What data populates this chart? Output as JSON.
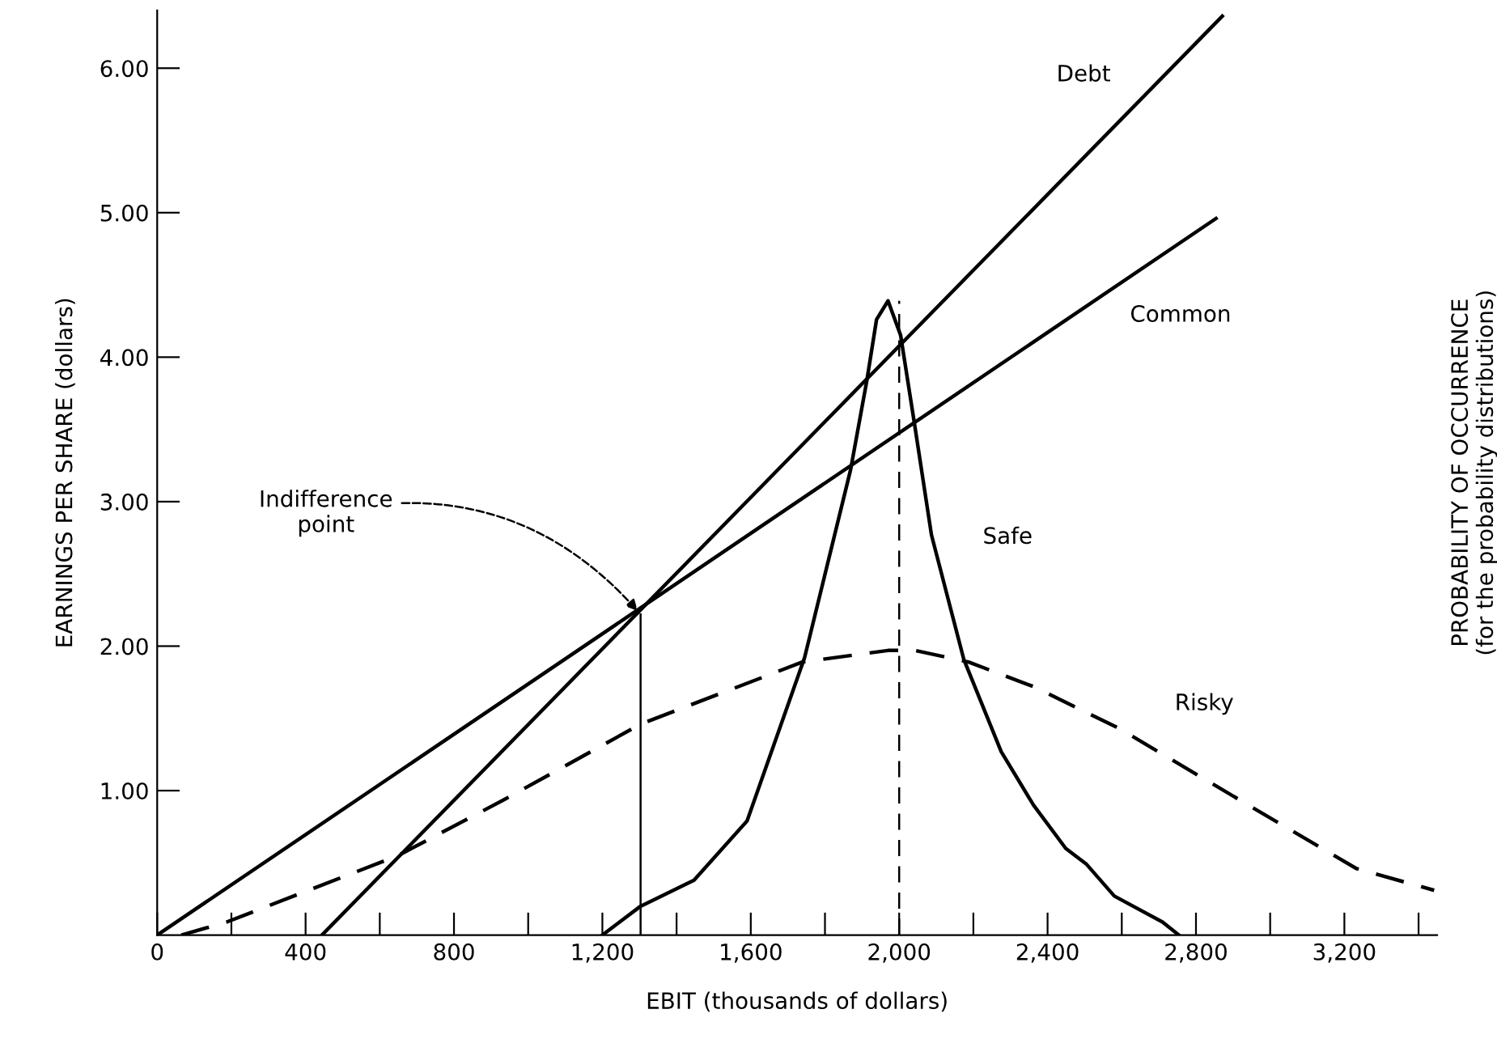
{
  "chart_data": {
    "type": "line",
    "xlabel": "EBIT (thousands of dollars)",
    "ylabel": "EARNINGS PER SHARE (dollars)",
    "y2label": "PROBABILITY OF OCCURRENCE\n(for the probability distributions)",
    "xlim": [
      0,
      3450
    ],
    "ylim": [
      0,
      6.4
    ],
    "xticks": [
      0,
      {
        "value": 200,
        "label": null
      },
      {
        "value": 400,
        "label": "400"
      },
      {
        "value": 600,
        "label": null
      },
      {
        "value": 800,
        "label": "800"
      },
      {
        "value": 1000,
        "label": null
      },
      {
        "value": 1200,
        "label": "1,200"
      },
      {
        "value": 1400,
        "label": null
      },
      {
        "value": 1600,
        "label": "1,600"
      },
      {
        "value": 1800,
        "label": null
      },
      {
        "value": 2000,
        "label": "2,000"
      },
      {
        "value": 2200,
        "label": null
      },
      {
        "value": 2400,
        "label": "2,400"
      },
      {
        "value": 2600,
        "label": null
      },
      {
        "value": 2800,
        "label": "2,800"
      },
      {
        "value": 3000,
        "label": null
      },
      {
        "value": 3200,
        "label": "3,200"
      },
      {
        "value": 3400,
        "label": null
      }
    ],
    "yticks": [
      {
        "value": 1,
        "label": "1.00"
      },
      {
        "value": 2,
        "label": "2.00"
      },
      {
        "value": 3,
        "label": "3.00"
      },
      {
        "value": 4,
        "label": "4.00"
      },
      {
        "value": 5,
        "label": "5.00"
      },
      {
        "value": 6,
        "label": "6.00"
      }
    ],
    "grid": false,
    "legend": false,
    "marker": "none",
    "series": [
      {
        "name": "Debt",
        "color": "#000000",
        "line_style": "solid",
        "x": [
          444,
          2871
        ],
        "values": [
          0,
          6.36
        ]
      },
      {
        "name": "Common",
        "color": "#000000",
        "line_style": "solid",
        "x": [
          0,
          2854
        ],
        "values": [
          0,
          4.96
        ]
      },
      {
        "name": "Safe",
        "color": "#000000",
        "line_style": "solid",
        "x": [
          1200,
          1303,
          1447,
          1590,
          1745,
          1869,
          1913,
          1939,
          1970,
          2004,
          2043,
          2087,
          2174,
          2275,
          2362,
          2449,
          2505,
          2580,
          2710,
          2754
        ],
        "values": [
          0,
          0.2,
          0.38,
          0.79,
          1.92,
          3.22,
          3.84,
          4.26,
          4.39,
          4.15,
          3.51,
          2.77,
          1.91,
          1.27,
          0.9,
          0.6,
          0.49,
          0.27,
          0.09,
          0
        ]
      },
      {
        "name": "Risky",
        "color": "#000000",
        "line_style": "dashed",
        "x": [
          65,
          187,
          649,
          937,
          1303,
          1739,
          1970,
          2043,
          2187,
          2362,
          2593,
          2941,
          3233,
          3442
        ],
        "values": [
          0,
          0.09,
          0.55,
          0.94,
          1.46,
          1.89,
          1.97,
          1.97,
          1.89,
          1.72,
          1.43,
          0.9,
          0.46,
          0.31
        ]
      },
      {
        "color": "#000000",
        "line_style": "solid",
        "x": [
          1303,
          1303
        ],
        "values": [
          0,
          2.22
        ]
      },
      {
        "color": "#000000",
        "line_style": "dashed",
        "x": [
          2000,
          2000
        ],
        "values": [
          0,
          4.39
        ]
      }
    ],
    "annotations": [
      {
        "text": "Indifference\npoint",
        "x": 1303,
        "y": 2.22
      }
    ]
  }
}
